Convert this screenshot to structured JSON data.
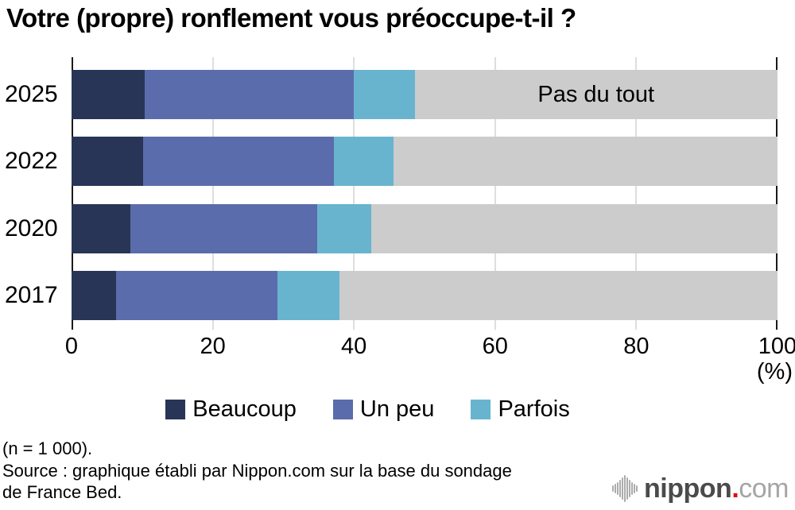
{
  "title": "Votre (propre) ronflement vous préoccupe-t-il ?",
  "chart_data": {
    "type": "bar",
    "orientation": "horizontal",
    "stacked": true,
    "title": "Votre (propre) ronflement vous préoccupe-t-il ?",
    "categories": [
      "2025",
      "2022",
      "2020",
      "2017"
    ],
    "series": [
      {
        "name": "Beaucoup",
        "color": "#283557",
        "values": [
          10.4,
          10.1,
          8.3,
          6.3
        ]
      },
      {
        "name": "Un peu",
        "color": "#5a6cab",
        "values": [
          29.6,
          27.1,
          26.5,
          22.9
        ]
      },
      {
        "name": "Parfois",
        "color": "#68b4cf",
        "values": [
          8.6,
          8.4,
          7.6,
          8.8
        ]
      },
      {
        "name": "Pas du tout",
        "color": "#cccccc",
        "values": [
          51.4,
          54.4,
          57.6,
          62.0
        ]
      }
    ],
    "xlim": [
      0,
      100
    ],
    "x_ticks": [
      "0",
      "20",
      "40",
      "60",
      "80",
      "100"
    ],
    "x_unit_label": "(%)",
    "grid": "vertical gridlines at 20/40/60/80, light gray",
    "in_bar_annotation": {
      "text": "Pas du tout",
      "category": "2025",
      "segment": "Pas du tout"
    },
    "legend_position": "bottom",
    "legend": [
      "Beaucoup",
      "Un peu",
      "Parfois"
    ]
  },
  "legend": {
    "items": [
      {
        "label": "Beaucoup",
        "color": "#283557"
      },
      {
        "label": "Un peu",
        "color": "#5a6cab"
      },
      {
        "label": "Parfois",
        "color": "#68b4cf"
      }
    ]
  },
  "axis": {
    "unit_label": "(%)"
  },
  "footer": {
    "sample": "(n = 1 000).",
    "source_line1": "Source : graphique établi par Nippon.com sur la base du sondage",
    "source_line2": "de France Bed."
  },
  "logo": {
    "icon": "soundwave-icon",
    "brand_bold": "nippon",
    "brand_dot": ".",
    "brand_rest": "com",
    "dot_color": "#e60012"
  }
}
